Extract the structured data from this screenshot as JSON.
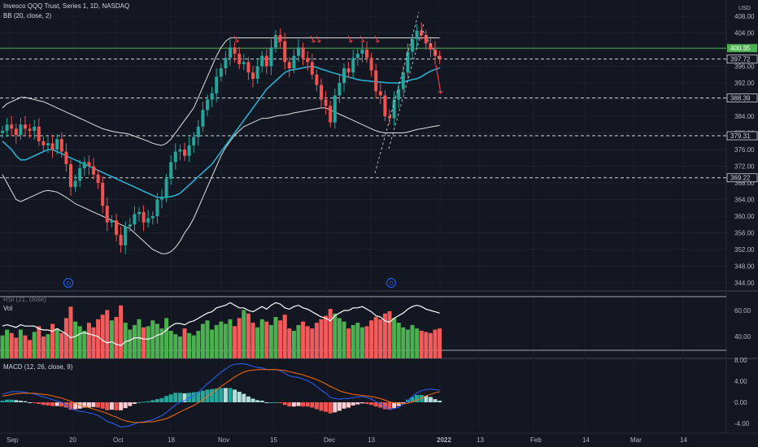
{
  "header": {
    "symbol_line": "Invesco QQQ Trust, Series 1, 1D, NASDAQ",
    "bb_label": "BB (20, close, 2)",
    "rsi_label": "RSI (21, close)",
    "vol_label": "Vol",
    "macd_label": "MACD (12, 26, close, 9)",
    "currency": "USD"
  },
  "colors": {
    "background": "#131722",
    "up": "#26a69a",
    "down": "#ef5350",
    "vol_up": "#4caf50",
    "vol_down": "#f15b5b",
    "bb_mid": "#29b6d8",
    "bb_band": "#e0e0e0",
    "resistance": "#4caf50",
    "annotation": "#f23645",
    "macd_line": "#2962ff",
    "signal_line": "#ff6d00"
  },
  "chart_data": [
    {
      "type": "candlestick",
      "title": "Invesco QQQ Trust, Series 1, 1D, NASDAQ",
      "x_ticks": [
        "Sep",
        "20",
        "Oct",
        "18",
        "Nov",
        "15",
        "Dec",
        "13",
        "2022",
        "13",
        "Feb",
        "14",
        "Mar",
        "14"
      ],
      "y_ticks": [
        344,
        348,
        352,
        356,
        360,
        364,
        368,
        372,
        376,
        380,
        384,
        388,
        392,
        396,
        400,
        404,
        408
      ],
      "ylim": [
        342,
        411
      ],
      "price_levels": [
        {
          "label": "400.35",
          "value": 400.35,
          "style": "solid"
        },
        {
          "label": "397.72",
          "value": 397.72,
          "style": "dashed"
        },
        {
          "label": "388.39",
          "value": 388.39,
          "style": "dashed"
        },
        {
          "label": "379.31",
          "value": 379.31,
          "style": "dashed"
        },
        {
          "label": "369.22",
          "value": 369.22,
          "style": "dashed"
        }
      ],
      "close": [
        380.5,
        382.0,
        381.0,
        379.5,
        382.0,
        381.0,
        380.5,
        381.5,
        378.0,
        377.0,
        377.5,
        376.0,
        378.5,
        375.5,
        372.5,
        367.0,
        368.5,
        371.5,
        373.0,
        372.0,
        370.0,
        368.0,
        362.5,
        358.5,
        359.0,
        355.5,
        353.0,
        357.5,
        358.0,
        360.5,
        361.0,
        358.5,
        359.5,
        360.0,
        364.0,
        364.5,
        369.0,
        373.0,
        375.5,
        376.0,
        374.5,
        377.0,
        379.0,
        381.5,
        385.5,
        388.0,
        389.5,
        393.5,
        395.5,
        398.0,
        400.5,
        399.0,
        396.5,
        397.0,
        394.5,
        393.0,
        396.0,
        398.5,
        396.0,
        400.5,
        403.5,
        402.0,
        397.0,
        395.5,
        398.5,
        400.5,
        398.0,
        397.0,
        394.0,
        391.5,
        388.0,
        386.5,
        382.5,
        389.0,
        392.0,
        395.5,
        394.5,
        398.0,
        399.0,
        400.0,
        398.0,
        395.0,
        390.0,
        389.0,
        384.0,
        383.5,
        388.0,
        390.5,
        394.5,
        399.5,
        402.5,
        404.5,
        403.5,
        401.5,
        400.0,
        398.5,
        397.72
      ],
      "bb_basis": [
        378,
        377,
        376,
        374.5,
        373.5,
        373.5,
        374,
        374.5,
        375,
        375.5,
        376,
        376,
        375.5,
        375,
        374.5,
        374,
        373.5,
        373,
        372.5,
        372,
        371.5,
        371,
        370.5,
        370,
        369.5,
        369,
        368.5,
        368,
        367.5,
        367,
        366.5,
        366,
        365.5,
        365,
        364.5,
        364.5,
        364.5,
        364.7,
        365,
        365.5,
        366.5,
        367.5,
        368.5,
        369.5,
        370.5,
        371.5,
        372.5,
        374,
        375.5,
        377,
        378.5,
        380,
        381.5,
        383,
        384.5,
        386,
        387.5,
        389,
        390.5,
        391.5,
        392.5,
        393.5,
        394.5,
        395,
        395.2,
        395.4,
        395.6,
        395.8,
        396,
        395.7,
        395.3,
        395,
        394.6,
        394.3,
        394,
        393.7,
        393.4,
        393.1,
        392.8,
        392.6,
        392.5,
        392.4,
        392.3,
        392.2,
        392.1,
        392,
        392,
        392,
        392.2,
        392.5,
        392.8,
        393,
        393.5,
        394.2,
        394.8,
        395.2,
        395.6
      ],
      "bb_upper": [
        386,
        387,
        387.5,
        388,
        388.5,
        388.5,
        388.3,
        388,
        387.7,
        387.5,
        387,
        386.5,
        386,
        385.5,
        385,
        384.5,
        384,
        383.5,
        383,
        382.5,
        382,
        381.5,
        381,
        380.7,
        380.4,
        380.2,
        380,
        379.9,
        379.6,
        379.2,
        378.8,
        378.4,
        378,
        377.5,
        377.2,
        377,
        377.5,
        378.5,
        380,
        381.5,
        383,
        384.5,
        386,
        388.5,
        391,
        393.5,
        396,
        398.5,
        400.5,
        402,
        402.8,
        402.8,
        402.8,
        402.8,
        402.8,
        402.8,
        402.8,
        402.8,
        402.8,
        402.8,
        402.8,
        402.8,
        402.8,
        402.8,
        402.8,
        402.8,
        402.8,
        402.8,
        402.8,
        402.8,
        402.8,
        402.8,
        402.8,
        402.8,
        402.8,
        402.8,
        402.8,
        402.8,
        402.8,
        402.8,
        402.8,
        402.8,
        402.8,
        402.8,
        402.8,
        402.8,
        402.8,
        402.8,
        402.8,
        402.8,
        402.8,
        402.8,
        402.8,
        402.8,
        402.8,
        402.8,
        402.8
      ],
      "bb_lower": [
        370,
        368,
        366,
        364,
        363.5,
        364,
        364.5,
        365,
        365.5,
        366,
        366.2,
        366,
        365.8,
        365.2,
        364.5,
        363.8,
        363,
        362.5,
        362,
        361.5,
        361,
        360.5,
        360,
        359.5,
        359,
        358.5,
        358,
        357.5,
        357,
        356,
        355,
        354,
        353,
        352,
        351.5,
        351,
        351,
        351.5,
        352.5,
        354,
        356,
        357.5,
        359.5,
        362,
        364.5,
        367,
        369.5,
        372,
        374.5,
        376.5,
        378,
        379.5,
        380.5,
        381.5,
        382,
        382.5,
        383,
        383.5,
        383.5,
        383.7,
        384,
        384.2,
        384.3,
        384.5,
        384.8,
        385,
        385.2,
        385.4,
        385.6,
        385.8,
        386,
        386,
        385.5,
        385,
        384.5,
        384,
        383.5,
        383,
        382.5,
        382,
        381.5,
        381,
        380.5,
        380.2,
        380,
        380,
        380,
        380,
        380,
        380.2,
        380.5,
        380.8,
        381,
        381.2,
        381.4,
        381.6,
        381.8
      ]
    },
    {
      "type": "bar",
      "title": "Vol",
      "values": [
        2,
        2.5,
        2.2,
        1.8,
        2.5,
        2,
        1.6,
        2.3,
        2.8,
        1.9,
        2.1,
        3,
        2.6,
        2.2,
        3.5,
        4.5,
        3.2,
        2.8,
        2.4,
        3.1,
        2.7,
        3.4,
        3.8,
        4.2,
        3.3,
        3.6,
        4.6,
        3.1,
        2.5,
        2.9,
        3.4,
        2.7,
        2.8,
        3.3,
        3,
        2.6,
        3.5,
        2.4,
        2.1,
        1.9,
        2.6,
        2.2,
        2,
        2.4,
        3,
        3.3,
        2.5,
        2.9,
        3.2,
        3,
        3.4,
        2.8,
        3.5,
        4.2,
        3.9,
        3.1,
        2.7,
        3.4,
        3.2,
        2.9,
        3.6,
        3.3,
        3.8,
        2.6,
        2.4,
        2.9,
        3.2,
        2.8,
        2.6,
        3.1,
        3.4,
        3.7,
        4.3,
        3.9,
        3.5,
        3.2,
        2.6,
        2.9,
        3.1,
        2.7,
        2.8,
        3.3,
        3.6,
        3.4,
        3.9,
        4.1,
        3.5,
        3.1,
        2.7,
        2.5,
        2.9,
        2.6,
        2.4,
        2.3,
        2.2,
        2.5,
        2.6
      ]
    },
    {
      "type": "line",
      "title": "RSI (21, close)",
      "y_ticks": [
        40,
        60
      ],
      "ylim": [
        28,
        72
      ],
      "values": [
        48,
        49,
        48,
        47,
        49,
        48,
        48,
        48,
        46,
        45,
        45,
        44,
        46,
        44,
        42,
        39,
        40,
        42,
        43,
        42,
        41,
        40,
        37,
        35,
        36,
        34,
        33,
        36,
        37,
        39,
        39,
        38,
        38,
        39,
        41,
        42,
        45,
        48,
        50,
        50,
        49,
        51,
        52,
        54,
        56,
        58,
        59,
        62,
        63,
        64,
        66,
        64,
        62,
        62,
        60,
        59,
        61,
        63,
        61,
        64,
        66,
        65,
        62,
        61,
        63,
        64,
        62,
        61,
        59,
        57,
        55,
        54,
        52,
        56,
        58,
        60,
        60,
        62,
        62,
        63,
        61,
        59,
        56,
        55,
        52,
        51,
        54,
        56,
        58,
        61,
        63,
        64,
        63,
        61,
        60,
        59,
        58
      ]
    },
    {
      "type": "line",
      "title": "MACD (12, 26, close, 9)",
      "y_ticks": [
        -4,
        0,
        4,
        8
      ],
      "ylim": [
        -5.8,
        9.6
      ],
      "series": [
        {
          "name": "MACD",
          "values": [
            1.5,
            1.8,
            2,
            2,
            2,
            1.9,
            1.7,
            1.6,
            1.3,
            1,
            0.8,
            0.5,
            0.3,
            0,
            -0.5,
            -1.2,
            -1.5,
            -1.7,
            -1.8,
            -2,
            -2.2,
            -2.5,
            -3,
            -3.6,
            -3.9,
            -4.3,
            -4.7,
            -4.6,
            -4.4,
            -4.1,
            -3.8,
            -3.7,
            -3.5,
            -3.3,
            -2.9,
            -2.5,
            -1.9,
            -1.2,
            -0.5,
            0,
            0.3,
            0.8,
            1.3,
            1.9,
            2.7,
            3.5,
            4.2,
            5,
            5.7,
            6.3,
            6.9,
            7.2,
            7.3,
            7.3,
            7.1,
            6.8,
            6.6,
            6.5,
            6.2,
            6.2,
            6.2,
            6,
            5.5,
            5,
            4.8,
            4.7,
            4.4,
            4.1,
            3.6,
            3,
            2.3,
            1.7,
            0.9,
            0.7,
            0.6,
            0.7,
            0.7,
            0.9,
            1,
            1.1,
            0.9,
            0.6,
            0.1,
            -0.3,
            -0.9,
            -1.3,
            -1.2,
            -0.9,
            -0.4,
            0.3,
            1.1,
            1.8,
            2.2,
            2.4,
            2.5,
            2.4,
            2.3
          ]
        },
        {
          "name": "Signal",
          "values": [
            1.2,
            1.3,
            1.5,
            1.6,
            1.7,
            1.7,
            1.7,
            1.7,
            1.6,
            1.5,
            1.4,
            1.2,
            1,
            0.8,
            0.5,
            0.2,
            -0.2,
            -0.5,
            -0.8,
            -1,
            -1.3,
            -1.5,
            -1.8,
            -2.1,
            -2.5,
            -2.8,
            -3.2,
            -3.5,
            -3.7,
            -3.8,
            -3.8,
            -3.8,
            -3.7,
            -3.7,
            -3.5,
            -3.3,
            -3.1,
            -2.7,
            -2.3,
            -1.8,
            -1.4,
            -1,
            -0.6,
            -0.1,
            0.5,
            1.1,
            1.7,
            2.4,
            3,
            3.6,
            4.2,
            4.8,
            5.3,
            5.7,
            6,
            6.1,
            6.2,
            6.2,
            6.2,
            6.2,
            6.2,
            6.1,
            6,
            5.8,
            5.6,
            5.4,
            5.2,
            4.9,
            4.6,
            4.3,
            3.9,
            3.5,
            3,
            2.6,
            2.2,
            1.9,
            1.7,
            1.5,
            1.4,
            1.3,
            1.2,
            1.1,
            0.9,
            0.7,
            0.4,
            0.1,
            -0.1,
            -0.2,
            -0.3,
            -0.2,
            0.1,
            0.4,
            0.8,
            1.2,
            1.5,
            1.8,
            2
          ]
        }
      ]
    }
  ]
}
